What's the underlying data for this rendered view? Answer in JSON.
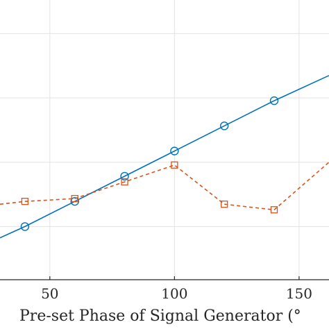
{
  "chart_data": {
    "type": "line",
    "title": "",
    "xlabel": "Pre-set Phase of Signal Generator (°",
    "ylabel": "",
    "xlim": [
      30,
      162
    ],
    "ylim": [
      0,
      100
    ],
    "grid": true,
    "x_ticks": [
      50,
      100,
      150
    ],
    "y_grid": [
      19,
      42,
      65,
      88
    ],
    "series": [
      {
        "name": "",
        "color": "#0072BD",
        "line_style": "solid",
        "marker": "circle",
        "x": [
          30,
          40,
          60,
          80,
          100,
          120,
          140,
          162
        ],
        "y": [
          15,
          19,
          28,
          37,
          46,
          55,
          64,
          73
        ],
        "marker_x": [
          40,
          60,
          80,
          100,
          120,
          140
        ]
      },
      {
        "name": "",
        "color": "#D95319",
        "line_style": "dashed",
        "marker": "square",
        "x": [
          30,
          40,
          60,
          80,
          100,
          120,
          140,
          162
        ],
        "y": [
          27,
          28,
          29,
          35,
          41,
          27,
          25,
          42
        ],
        "marker_x": [
          40,
          60,
          80,
          100,
          120,
          140
        ]
      }
    ]
  }
}
